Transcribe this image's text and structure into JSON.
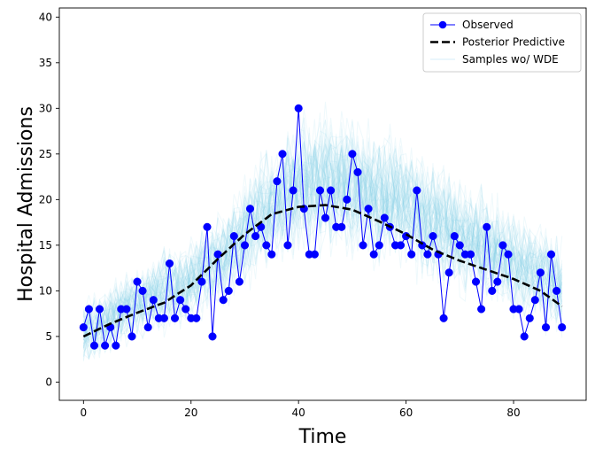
{
  "chart_data": {
    "type": "line",
    "title": "",
    "xlabel": "Time",
    "ylabel": "Hospital Admissions",
    "xlim": [
      -4.5,
      93.5
    ],
    "ylim": [
      -2,
      41
    ],
    "xticks": [
      0,
      20,
      40,
      60,
      80
    ],
    "yticks": [
      0,
      5,
      10,
      15,
      20,
      25,
      30,
      35,
      40
    ],
    "grid": false,
    "legend_position": "top-right",
    "colors": {
      "observed": "#0000ff",
      "posterior": "#000000",
      "samples": "#87ceeb"
    },
    "series": [
      {
        "name": "Observed",
        "style": "line-with-markers",
        "x": [
          0,
          1,
          2,
          3,
          4,
          5,
          6,
          7,
          8,
          9,
          10,
          11,
          12,
          13,
          14,
          15,
          16,
          17,
          18,
          19,
          20,
          21,
          22,
          23,
          24,
          25,
          26,
          27,
          28,
          29,
          30,
          31,
          32,
          33,
          34,
          35,
          36,
          37,
          38,
          39,
          40,
          41,
          42,
          43,
          44,
          45,
          46,
          47,
          48,
          49,
          50,
          51,
          52,
          53,
          54,
          55,
          56,
          57,
          58,
          59,
          60,
          61,
          62,
          63,
          64,
          65,
          66,
          67,
          68,
          69,
          70,
          71,
          72,
          73,
          74,
          75,
          76,
          77,
          78,
          79,
          80,
          81,
          82,
          83,
          84,
          85,
          86,
          87,
          88,
          89
        ],
        "values": [
          6,
          8,
          4,
          8,
          4,
          6,
          4,
          8,
          8,
          5,
          11,
          10,
          6,
          9,
          7,
          7,
          13,
          7,
          9,
          8,
          7,
          7,
          11,
          17,
          5,
          14,
          9,
          10,
          16,
          11,
          15,
          19,
          16,
          17,
          15,
          14,
          22,
          25,
          15,
          21,
          30,
          19,
          14,
          14,
          21,
          18,
          21,
          17,
          17,
          20,
          25,
          23,
          15,
          19,
          14,
          15,
          18,
          17,
          15,
          15,
          16,
          14,
          21,
          15,
          14,
          16,
          14,
          7,
          12,
          16,
          15,
          14,
          14,
          11,
          8,
          17,
          10,
          11,
          15,
          14,
          8,
          8,
          5,
          7,
          9,
          12,
          6,
          14,
          10,
          6
        ]
      },
      {
        "name": "Posterior Predictive",
        "style": "dashed",
        "x": [
          0,
          5,
          10,
          15,
          20,
          25,
          30,
          35,
          40,
          45,
          50,
          55,
          60,
          65,
          70,
          75,
          80,
          85,
          89
        ],
        "values": [
          5.0,
          6.4,
          7.6,
          8.7,
          10.6,
          13.5,
          16.2,
          18.4,
          19.2,
          19.4,
          18.9,
          17.6,
          16.2,
          14.5,
          13.3,
          12.3,
          11.3,
          10.0,
          8.3
        ]
      },
      {
        "name": "Samples wo/ WDE",
        "style": "sample-band",
        "x": [
          0,
          5,
          10,
          15,
          20,
          25,
          30,
          35,
          40,
          45,
          50,
          55,
          60,
          65,
          70,
          75,
          80,
          85,
          89
        ],
        "lower": [
          1,
          2,
          3,
          4,
          5,
          7,
          9,
          11,
          12,
          12,
          12,
          11,
          10,
          9,
          8,
          7,
          6,
          5,
          3
        ],
        "upper": [
          10,
          12,
          14,
          16,
          17,
          20,
          24,
          28,
          31,
          32,
          31,
          30,
          28,
          26,
          24,
          22,
          20,
          19,
          17
        ]
      }
    ]
  }
}
